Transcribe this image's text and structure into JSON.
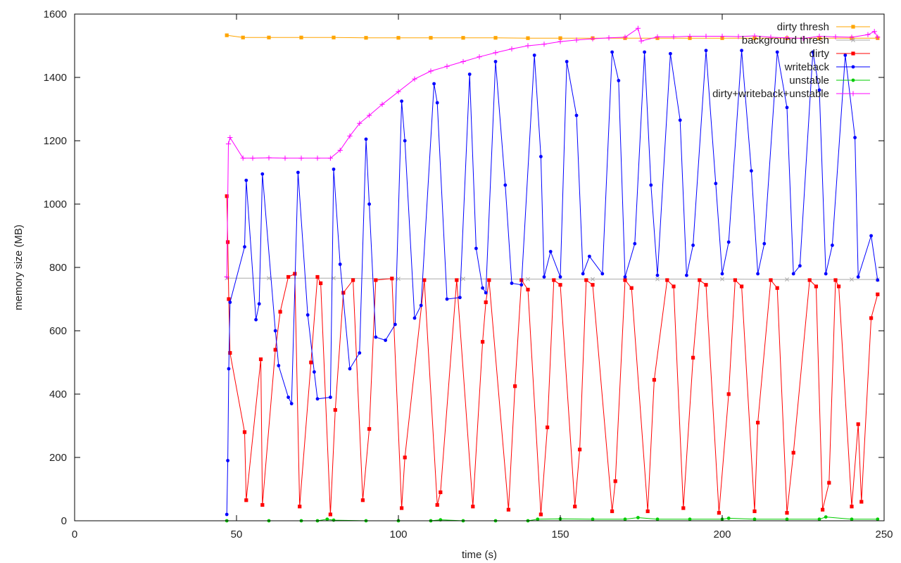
{
  "chart_data": {
    "type": "line",
    "xlabel": "time (s)",
    "ylabel": "memory size (MB)",
    "xlim": [
      0,
      250
    ],
    "ylim": [
      0,
      1600
    ],
    "xticks": [
      0,
      50,
      100,
      150,
      200,
      250
    ],
    "yticks": [
      0,
      200,
      400,
      600,
      800,
      1000,
      1200,
      1400,
      1600
    ],
    "legend_position": "top-right",
    "grid": false,
    "series": [
      {
        "name": "dirty thresh",
        "color": "#ffa500",
        "marker": "square",
        "x": [
          47,
          52,
          60,
          70,
          80,
          90,
          100,
          110,
          120,
          130,
          140,
          150,
          160,
          170,
          180,
          190,
          200,
          210,
          220,
          230,
          240,
          248
        ],
        "values": [
          1533,
          1526,
          1526,
          1526,
          1526,
          1525,
          1525,
          1525,
          1525,
          1525,
          1524,
          1524,
          1524,
          1524,
          1524,
          1524,
          1524,
          1524,
          1524,
          1524,
          1524,
          1524
        ]
      },
      {
        "name": "background thresh",
        "color": "#aaaaaa",
        "marker": "cross",
        "x": [
          47,
          60,
          80,
          100,
          120,
          140,
          160,
          180,
          200,
          220,
          240,
          248
        ],
        "values": [
          766,
          766,
          766,
          764,
          764,
          763,
          763,
          763,
          763,
          762,
          762,
          762
        ]
      },
      {
        "name": "dirty",
        "color": "#ff0000",
        "marker": "square",
        "x": [
          47,
          47.3,
          47.6,
          48,
          52.5,
          53,
          57.5,
          58,
          62,
          63.5,
          66,
          68,
          69.5,
          73,
          75,
          76,
          79,
          80.5,
          83,
          86,
          89,
          91,
          93,
          98,
          101,
          102,
          108,
          112,
          113,
          118,
          123,
          126,
          127,
          128,
          134,
          136,
          138,
          140,
          144,
          146,
          148,
          150,
          154.5,
          156,
          158,
          160,
          166,
          167,
          170,
          172,
          177,
          179,
          183,
          185,
          188,
          191,
          193,
          195,
          199,
          202,
          204,
          206,
          210,
          211,
          215,
          217,
          220,
          222,
          227,
          229,
          231,
          233,
          235,
          236,
          240,
          242,
          243,
          246,
          248
        ],
        "values": [
          1025,
          880,
          700,
          530,
          280,
          65,
          510,
          50,
          540,
          660,
          770,
          780,
          45,
          500,
          770,
          750,
          20,
          350,
          720,
          760,
          65,
          290,
          760,
          765,
          40,
          200,
          760,
          50,
          90,
          760,
          45,
          565,
          690,
          760,
          35,
          425,
          760,
          730,
          20,
          295,
          760,
          745,
          45,
          225,
          760,
          745,
          30,
          125,
          760,
          735,
          30,
          445,
          760,
          740,
          40,
          515,
          760,
          745,
          25,
          400,
          760,
          740,
          30,
          310,
          760,
          735,
          25,
          215,
          760,
          740,
          35,
          120,
          760,
          740,
          45,
          305,
          60,
          640,
          715
        ]
      },
      {
        "name": "writeback",
        "color": "#0000ff",
        "marker": "circle",
        "x": [
          47,
          47.3,
          47.6,
          48,
          52.5,
          53,
          56,
          57,
          58,
          62,
          63,
          66,
          67,
          69,
          72,
          74,
          75,
          79,
          80,
          82,
          85,
          88,
          90,
          91,
          93,
          96,
          99,
          101,
          102,
          105,
          107,
          111,
          112,
          115,
          119,
          122,
          124,
          126,
          127,
          130,
          133,
          135,
          138,
          142,
          144,
          145,
          147,
          150,
          152,
          155,
          157,
          159,
          163,
          166,
          168,
          170,
          173,
          176,
          178,
          180,
          184,
          187,
          189,
          191,
          195,
          198,
          200,
          202,
          206,
          209,
          211,
          213,
          217,
          220,
          222,
          224,
          228,
          230,
          232,
          234,
          238,
          241,
          242,
          246,
          248
        ],
        "values": [
          20,
          190,
          480,
          690,
          865,
          1075,
          635,
          685,
          1095,
          600,
          490,
          390,
          370,
          1100,
          650,
          470,
          385,
          390,
          1110,
          810,
          480,
          530,
          1205,
          1000,
          580,
          570,
          620,
          1325,
          1200,
          640,
          680,
          1380,
          1320,
          700,
          705,
          1410,
          860,
          735,
          720,
          1450,
          1060,
          750,
          745,
          1470,
          1150,
          770,
          850,
          770,
          1450,
          1280,
          780,
          835,
          780,
          1480,
          1390,
          770,
          875,
          1480,
          1060,
          775,
          1475,
          1265,
          775,
          870,
          1485,
          1065,
          780,
          880,
          1485,
          1105,
          780,
          875,
          1480,
          1305,
          780,
          805,
          1480,
          1360,
          780,
          870,
          1470,
          1210,
          770,
          900,
          760
        ]
      },
      {
        "name": "unstable",
        "color": "#00cc00",
        "marker": "circle",
        "x": [
          47,
          60,
          70,
          75,
          78,
          80,
          90,
          100,
          110,
          113,
          120,
          130,
          140,
          143,
          150,
          160,
          170,
          174,
          180,
          190,
          200,
          202,
          210,
          220,
          230,
          232,
          240,
          248
        ],
        "values": [
          0,
          0,
          0,
          0,
          5,
          2,
          0,
          0,
          0,
          3,
          0,
          0,
          0,
          5,
          6,
          5,
          5,
          10,
          5,
          5,
          5,
          8,
          5,
          5,
          5,
          12,
          5,
          5
        ]
      },
      {
        "name": "dirty+writeback+unstable",
        "color": "#ff00ff",
        "marker": "plus",
        "x": [
          47,
          47.5,
          48,
          52,
          55,
          60,
          65,
          70,
          75,
          79,
          82,
          85,
          88,
          91,
          95,
          100,
          105,
          110,
          115,
          120,
          125,
          130,
          135,
          140,
          145,
          150,
          155,
          160,
          165,
          170,
          174,
          175,
          180,
          185,
          190,
          195,
          200,
          205,
          210,
          215,
          220,
          225,
          230,
          235,
          240,
          245,
          247,
          248
        ],
        "values": [
          770,
          1190,
          1210,
          1145,
          1145,
          1146,
          1145,
          1145,
          1145,
          1145,
          1170,
          1215,
          1255,
          1280,
          1315,
          1355,
          1395,
          1420,
          1435,
          1450,
          1465,
          1478,
          1490,
          1500,
          1505,
          1513,
          1518,
          1522,
          1525,
          1527,
          1555,
          1515,
          1528,
          1528,
          1530,
          1530,
          1530,
          1529,
          1531,
          1527,
          1525,
          1523,
          1530,
          1528,
          1527,
          1535,
          1545,
          1527
        ]
      }
    ]
  }
}
